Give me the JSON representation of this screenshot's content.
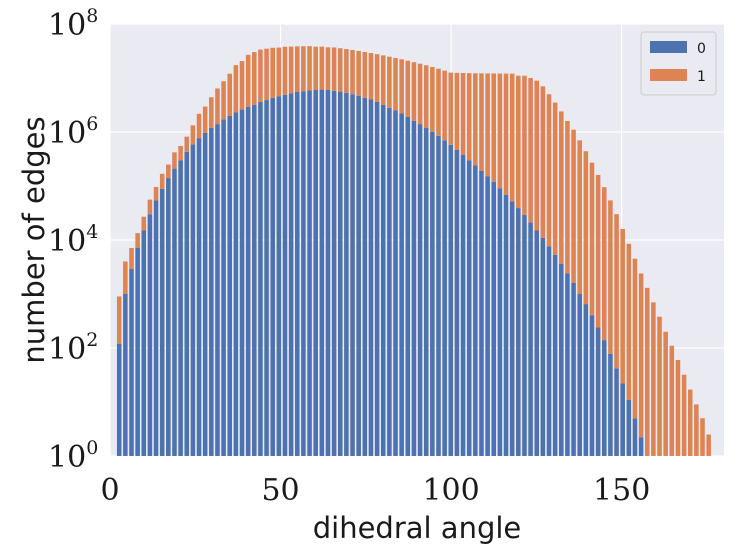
{
  "chart_data": {
    "type": "bar",
    "stacked": true,
    "y_scale": "log",
    "xlabel": "dihedral angle",
    "ylabel": "number of edges",
    "xlim": [
      0,
      180
    ],
    "ylim": [
      1,
      100000000
    ],
    "x_ticks": [
      "0",
      "50",
      "100",
      "150"
    ],
    "y_ticks": [
      {
        "base": "10",
        "exp": "0"
      },
      {
        "base": "10",
        "exp": "2"
      },
      {
        "base": "10",
        "exp": "4"
      },
      {
        "base": "10",
        "exp": "6"
      },
      {
        "base": "10",
        "exp": "8"
      }
    ],
    "grid": true,
    "legend": {
      "position": "top-right",
      "entries": [
        "0",
        "1"
      ]
    },
    "colors": {
      "0": "#4c72b0",
      "1": "#dd8452",
      "background": "#eaeaf2"
    },
    "bin_width": 1.8,
    "x": [
      2.7,
      4.5,
      6.3,
      8.1,
      9.9,
      11.7,
      13.5,
      15.3,
      17.1,
      18.9,
      20.7,
      22.5,
      24.3,
      26.1,
      27.9,
      29.7,
      31.5,
      33.3,
      35.1,
      36.9,
      38.7,
      40.5,
      42.3,
      44.1,
      45.9,
      47.7,
      49.5,
      51.3,
      53.1,
      54.9,
      56.7,
      58.5,
      60.3,
      62.1,
      63.9,
      65.7,
      67.5,
      69.3,
      71.1,
      72.9,
      74.7,
      76.5,
      78.3,
      80.1,
      81.9,
      83.7,
      85.5,
      87.3,
      89.1,
      90.9,
      92.7,
      94.5,
      96.3,
      98.1,
      99.9,
      101.7,
      103.5,
      105.3,
      107.1,
      108.9,
      110.7,
      112.5,
      114.3,
      116.1,
      117.9,
      119.7,
      121.5,
      123.3,
      125.1,
      126.9,
      128.7,
      130.5,
      132.3,
      134.1,
      135.9,
      137.7,
      139.5,
      141.3,
      143.1,
      144.9,
      146.7,
      148.5,
      150.3,
      152.1,
      153.9,
      155.7,
      157.5,
      159.3,
      161.1,
      162.9,
      164.7,
      166.5,
      168.3,
      170.1,
      171.9,
      173.7,
      175.5,
      177.3
    ],
    "series": [
      {
        "name": "0",
        "values": [
          120,
          1000,
          2900,
          7100,
          15000.0,
          30000.0,
          54000.0,
          89000.0,
          140000.0,
          210000.0,
          300000.0,
          430000.0,
          590000.0,
          770000.0,
          960000.0,
          1200000.0,
          1400000.0,
          1700000.0,
          2000000.0,
          2300000.0,
          2600000.0,
          2900000.0,
          3200000.0,
          3600000.0,
          3900000.0,
          4300000.0,
          4600000.0,
          4900000.0,
          5200000.0,
          5500000.0,
          5700000.0,
          5900000.0,
          6000000.0,
          6100000.0,
          6000000.0,
          5800000.0,
          5600000.0,
          5300000.0,
          5000000.0,
          4700000.0,
          4300000.0,
          4000000.0,
          3600000.0,
          3200000.0,
          2800000.0,
          2500000.0,
          2200000.0,
          1900000.0,
          1600000.0,
          1400000.0,
          1200000.0,
          1000000.0,
          850000.0,
          700000.0,
          580000.0,
          470000.0,
          380000.0,
          300000.0,
          240000.0,
          190000.0,
          150000.0,
          120000.0,
          90000.0,
          69000.0,
          52000.0,
          39000.0,
          29000.0,
          21000.0,
          15000.0,
          11000.0,
          7600,
          5300,
          3600,
          2400,
          1600,
          1000,
          650,
          400,
          240,
          140,
          78,
          42,
          22,
          11,
          5,
          2.2,
          1,
          0,
          0,
          0,
          0,
          0,
          0,
          0,
          0,
          0,
          0,
          0
        ]
      },
      {
        "name": "1",
        "values": [
          780,
          3000,
          4200,
          6300,
          12000.0,
          26000.0,
          42000.0,
          79000.0,
          110000.0,
          210000.0,
          250000.0,
          390000.0,
          740000.0,
          1400000.0,
          2000000.0,
          3200000.0,
          5000000.0,
          7000000.0,
          10000000.0,
          15000000.0,
          18000000.0,
          24000000.0,
          27000000.0,
          30000000.0,
          31000000.0,
          32000000.0,
          32000000.0,
          33000000.0,
          33000000.0,
          33000000.0,
          33000000.0,
          33000000.0,
          32000000.0,
          32000000.0,
          31000000.0,
          31000000.0,
          30000000.0,
          29000000.0,
          28000000.0,
          27000000.0,
          26000000.0,
          25000000.0,
          24000000.0,
          23000000.0,
          22000000.0,
          21000000.0,
          20000000.0,
          19000000.0,
          18000000.0,
          17000000.0,
          16000000.0,
          15000000.0,
          14000000.0,
          13000000.0,
          12000000.0,
          12000000.0,
          12000000.0,
          12000000.0,
          12000000.0,
          12000000.0,
          12000000.0,
          12000000.0,
          12000000.0,
          12000000.0,
          12000000.0,
          11000000.0,
          11000000.0,
          10000000.0,
          8900000.0,
          7000000.0,
          5000000.0,
          3500000.0,
          2400000.0,
          1600000.0,
          1100000.0,
          700000.0,
          440000.0,
          270000.0,
          160000.0,
          95000.0,
          54000.0,
          30000.0,
          16000.0,
          8500,
          4500,
          2400,
          1300,
          700,
          380,
          200,
          110,
          60,
          32,
          17,
          9,
          5,
          2.5,
          0
        ]
      }
    ]
  }
}
